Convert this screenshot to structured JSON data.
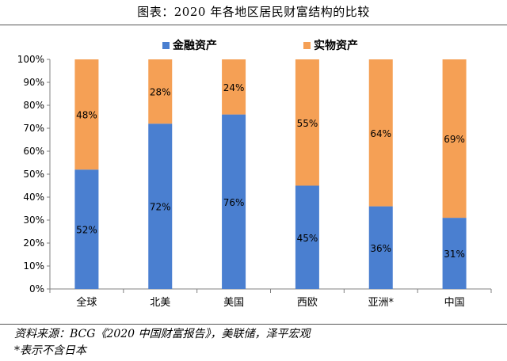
{
  "page": {
    "title": "图表：2020 年各地区居民财富结构的比较",
    "source": "资料来源：BCG《2020 中国财富报告》，美联储，泽平宏观",
    "note": "*表示不含日本"
  },
  "colors": {
    "financial": "#4a7fd0",
    "physical": "#f5a055",
    "axis": "#808080"
  },
  "chart_data": {
    "type": "bar",
    "stacked": true,
    "percent": true,
    "categories": [
      "全球",
      "北美",
      "美国",
      "西欧",
      "亚洲*",
      "中国"
    ],
    "series": [
      {
        "name": "金融资产",
        "values": [
          52,
          72,
          76,
          45,
          36,
          31
        ],
        "labels": [
          "52%",
          "72%",
          "76%",
          "45%",
          "36%",
          "31%"
        ]
      },
      {
        "name": "实物资产",
        "values": [
          48,
          28,
          24,
          55,
          64,
          69
        ],
        "labels": [
          "48%",
          "28%",
          "24%",
          "55%",
          "64%",
          "69%"
        ]
      }
    ],
    "yticks": [
      "0%",
      "10%",
      "20%",
      "30%",
      "40%",
      "50%",
      "60%",
      "70%",
      "80%",
      "90%",
      "100%"
    ],
    "ylim": [
      0,
      100
    ],
    "legend_position": "top",
    "grid": false
  }
}
